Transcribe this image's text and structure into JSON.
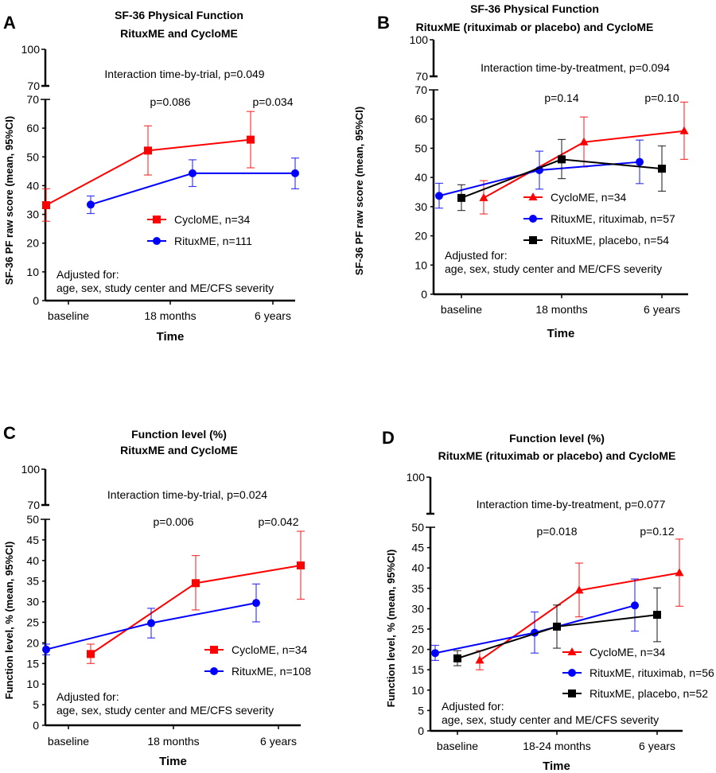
{
  "colors": {
    "red": "#ff0000",
    "blue": "#0000ff",
    "black": "#000000"
  },
  "chart_data": [
    {
      "panel": "A",
      "type": "line",
      "title": [
        "SF-36 Physical Function",
        "RituxME and CycloME"
      ],
      "xlabel": "Time",
      "ylabel": "SF-36 PF raw score (mean, 95%CI)",
      "categories": [
        "baseline",
        "18 months",
        "6 years"
      ],
      "ylim": [
        0,
        70
      ],
      "yticks": [
        0,
        10,
        20,
        30,
        40,
        50,
        60,
        70
      ],
      "ybreak": {
        "upper_ticks": [
          70,
          100
        ]
      },
      "interaction": "Interaction time-by-trial, p=0.049",
      "pvalues": [
        "",
        "p=0.086",
        "p=0.034"
      ],
      "adjusted": [
        "Adjusted for:",
        "age, sex, study center and ME/CFS severity"
      ],
      "series": [
        {
          "name": "CycloME, n=34",
          "color": "red",
          "marker": "square",
          "offset": -1,
          "values": [
            33.2,
            52.2,
            56.0
          ],
          "lower": [
            27.6,
            43.7,
            46.2
          ],
          "upper": [
            38.9,
            60.8,
            65.8
          ]
        },
        {
          "name": "RituxME, n=111",
          "color": "blue",
          "marker": "circle",
          "offset": 1,
          "values": [
            33.4,
            44.3,
            44.3
          ],
          "lower": [
            30.3,
            39.7,
            38.9
          ],
          "upper": [
            36.4,
            49.0,
            49.6
          ]
        }
      ]
    },
    {
      "panel": "B",
      "type": "line",
      "title": [
        "SF-36 Physical Function",
        "RituxME (rituximab or placebo) and CycloME"
      ],
      "xlabel": "Time",
      "ylabel": "SF-36 PF raw score (mean, 95%CI)",
      "categories": [
        "baseline",
        "18 months",
        "6 years"
      ],
      "ylim": [
        0,
        70
      ],
      "yticks": [
        0,
        10,
        20,
        30,
        40,
        50,
        60,
        70
      ],
      "ybreak": {
        "upper_ticks": [
          70,
          100
        ]
      },
      "interaction": "Interaction time-by-treatment, p=0.094",
      "pvalues": [
        "",
        "p=0.14",
        "p=0.10"
      ],
      "adjusted": [
        "Adjusted for:",
        "age, sex, study center and ME/CFS severity"
      ],
      "series": [
        {
          "name": "CycloME, n=34",
          "color": "red",
          "marker": "triangle",
          "offset": 1,
          "values": [
            33.0,
            52.1,
            55.9
          ],
          "lower": [
            27.5,
            43.6,
            46.2
          ],
          "upper": [
            38.9,
            60.7,
            65.8
          ]
        },
        {
          "name": "RituxME, rituximab, n=57",
          "color": "blue",
          "marker": "circle",
          "offset": -1,
          "values": [
            33.7,
            42.5,
            45.3
          ],
          "lower": [
            29.5,
            36.0,
            37.9
          ],
          "upper": [
            38.0,
            49.0,
            52.8
          ]
        },
        {
          "name": "RituxME, placebo, n=54",
          "color": "black",
          "marker": "square",
          "offset": 0,
          "values": [
            33.0,
            46.2,
            43.0
          ],
          "lower": [
            28.7,
            39.6,
            35.3
          ],
          "upper": [
            37.5,
            53.0,
            50.8
          ]
        }
      ]
    },
    {
      "panel": "C",
      "type": "line",
      "title": [
        "Function level (%)",
        "RituxME and CycloME"
      ],
      "xlabel": "Time",
      "ylabel": "Function level, % (mean, 95%CI)",
      "categories": [
        "baseline",
        "18 months",
        "6 years"
      ],
      "ylim": [
        0,
        50
      ],
      "yticks": [
        0,
        5,
        10,
        15,
        20,
        25,
        30,
        35,
        40,
        45,
        50
      ],
      "ybreak": {
        "upper_ticks": [
          70,
          100
        ]
      },
      "interaction": "Interaction time-by-trial, p=0.024",
      "pvalues": [
        "",
        "p=0.006",
        "p=0.042"
      ],
      "adjusted": [
        "Adjusted for:",
        "age, sex, study center and ME/CFS severity"
      ],
      "series": [
        {
          "name": "CycloME, n=34",
          "color": "red",
          "marker": "square",
          "offset": 1,
          "values": [
            17.3,
            34.5,
            38.8
          ],
          "lower": [
            15.0,
            28.0,
            30.6
          ],
          "upper": [
            19.7,
            41.2,
            47.1
          ]
        },
        {
          "name": "RituxME, n=108",
          "color": "blue",
          "marker": "circle",
          "offset": -1,
          "values": [
            18.4,
            24.8,
            29.7
          ],
          "lower": [
            17.1,
            21.2,
            25.1
          ],
          "upper": [
            19.7,
            28.4,
            34.3
          ]
        }
      ]
    },
    {
      "panel": "D",
      "type": "line",
      "title": [
        "Function level (%)",
        "RituxME (rituximab or placebo) and CycloME"
      ],
      "xlabel": "Time",
      "ylabel": "Function level, % (mean, 95%CI)",
      "categories": [
        "baseline",
        "18-24 months",
        "6 years"
      ],
      "ylim": [
        0,
        50
      ],
      "yticks": [
        0,
        5,
        10,
        15,
        20,
        25,
        30,
        35,
        40,
        45,
        50
      ],
      "ybreak": {
        "upper_ticks": [
          100
        ]
      },
      "interaction": "Interaction time-by-treatment, p=0.077",
      "pvalues": [
        "",
        "p=0.018",
        "p=0.12"
      ],
      "adjusted": [
        "Adjusted for:",
        "age, sex, study center and ME/CFS severity"
      ],
      "series": [
        {
          "name": "CycloME, n=34",
          "color": "red",
          "marker": "triangle",
          "offset": 1,
          "values": [
            17.3,
            34.5,
            38.8
          ],
          "lower": [
            15.0,
            28.0,
            30.6
          ],
          "upper": [
            19.7,
            41.2,
            47.1
          ]
        },
        {
          "name": "RituxME, rituximab, n=56",
          "color": "blue",
          "marker": "circle",
          "offset": -1,
          "values": [
            19.1,
            24.1,
            30.8
          ],
          "lower": [
            17.3,
            19.1,
            24.5
          ],
          "upper": [
            21.0,
            29.2,
            37.3
          ]
        },
        {
          "name": "RituxME, placebo, n=52",
          "color": "black",
          "marker": "square",
          "offset": 0,
          "values": [
            17.8,
            25.6,
            28.5
          ],
          "lower": [
            16.0,
            20.3,
            21.9
          ],
          "upper": [
            19.7,
            30.9,
            35.1
          ]
        }
      ]
    }
  ]
}
